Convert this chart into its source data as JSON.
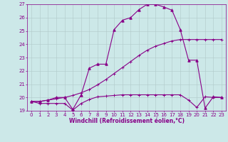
{
  "xlabel": "Windchill (Refroidissement éolien,°C)",
  "bg_color": "#cce8e8",
  "grid_color": "#b0c8c8",
  "line_color": "#880088",
  "xlim": [
    -0.5,
    23.5
  ],
  "ylim": [
    19,
    27
  ],
  "yticks": [
    19,
    20,
    21,
    22,
    23,
    24,
    25,
    26,
    27
  ],
  "xticks": [
    0,
    1,
    2,
    3,
    4,
    5,
    6,
    7,
    8,
    9,
    10,
    11,
    12,
    13,
    14,
    15,
    16,
    17,
    18,
    19,
    20,
    21,
    22,
    23
  ],
  "series1_x": [
    0,
    1,
    2,
    3,
    4,
    5,
    6,
    7,
    8,
    9,
    10,
    11,
    12,
    13,
    14,
    15,
    16,
    17,
    18,
    19,
    20,
    21,
    22,
    23
  ],
  "series1_y": [
    19.7,
    19.55,
    19.55,
    19.55,
    19.55,
    19.05,
    19.55,
    19.85,
    20.05,
    20.1,
    20.15,
    20.2,
    20.2,
    20.2,
    20.2,
    20.2,
    20.2,
    20.2,
    20.2,
    19.8,
    19.25,
    20.05,
    20.0,
    20.0
  ],
  "series2_x": [
    0,
    1,
    2,
    3,
    4,
    5,
    6,
    7,
    8,
    9,
    10,
    11,
    12,
    13,
    14,
    15,
    16,
    17,
    18,
    19,
    20,
    21,
    22,
    23
  ],
  "series2_y": [
    19.7,
    19.7,
    19.8,
    19.9,
    20.0,
    20.15,
    20.35,
    20.6,
    20.95,
    21.35,
    21.8,
    22.25,
    22.7,
    23.15,
    23.55,
    23.85,
    24.05,
    24.25,
    24.35,
    24.35,
    24.35,
    24.35,
    24.35,
    24.35
  ],
  "series3_x": [
    0,
    1,
    2,
    3,
    4,
    5,
    6,
    7,
    8,
    9,
    10,
    11,
    12,
    13,
    14,
    15,
    16,
    17,
    18,
    19,
    20,
    21,
    22,
    23
  ],
  "series3_y": [
    19.7,
    19.7,
    19.8,
    20.0,
    20.0,
    19.1,
    20.2,
    22.2,
    22.5,
    22.5,
    25.1,
    25.8,
    26.0,
    26.6,
    27.0,
    27.0,
    26.8,
    26.55,
    25.1,
    22.8,
    22.8,
    19.2,
    20.05,
    20.0
  ],
  "marker1": "+",
  "marker2": "+",
  "marker3": "^",
  "lw": 0.8,
  "ms": 2.5,
  "tick_fontsize": 5.0,
  "xlabel_fontsize": 5.5
}
